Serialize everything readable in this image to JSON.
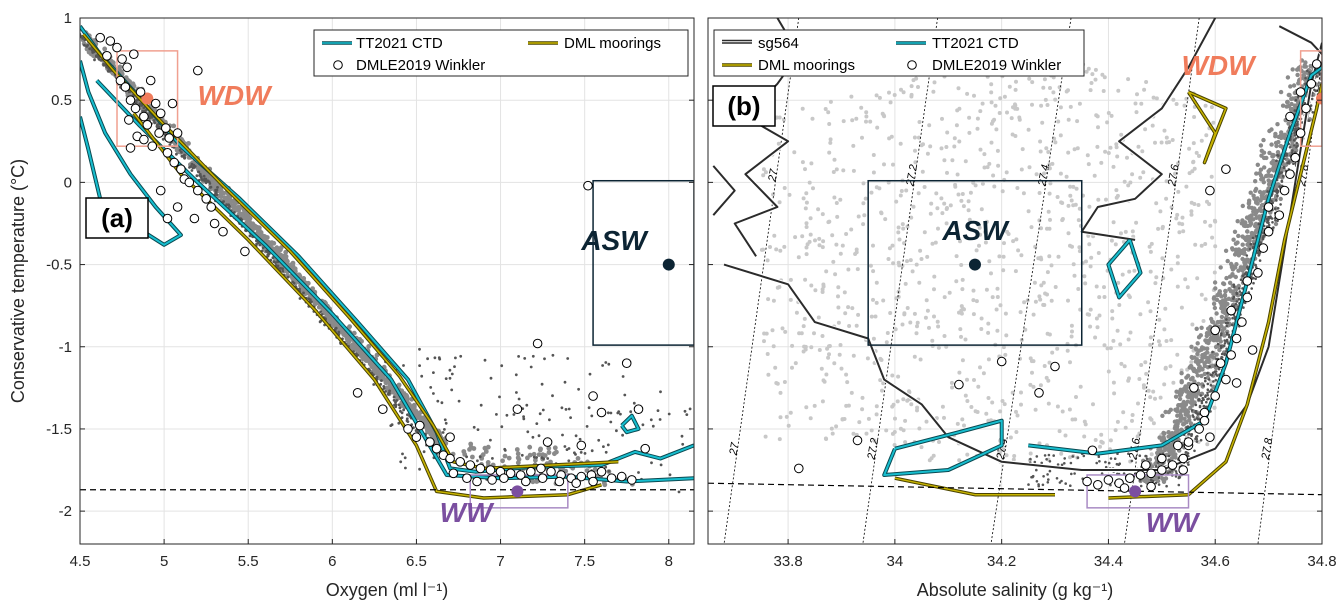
{
  "colors": {
    "sg564": "#2b2b2b",
    "tt2021": "#17becf",
    "tt2021_edge": "#0a4a52",
    "dml": "#c8b400",
    "dml_edge": "#4a4300",
    "wdw": "#f07c5c",
    "wdw_box": "#f0a090",
    "asw": "#0c2433",
    "ww": "#7b4fa0",
    "ww_box": "#a98bc4",
    "gray_dark": "#555555",
    "gray_mid": "#8a8a8a",
    "gray_light": "#c8c8c8"
  },
  "chart_data": [
    {
      "type": "scatter",
      "panel": "(a)",
      "xlabel": "Oxygen (ml l⁻¹)",
      "ylabel": "Conservative temperature (°C)",
      "xlim": [
        4.5,
        8.15
      ],
      "ylim": [
        -2.2,
        1.0
      ],
      "xticks": [
        "4.5",
        "5",
        "5.5",
        "6",
        "6.5",
        "7",
        "7.5",
        "8"
      ],
      "yticks": [
        "-2",
        "-1.5",
        "-1",
        "-0.5",
        "0",
        "0.5",
        "1"
      ],
      "grid": true,
      "legend": {
        "placement": "top-right",
        "entries": [
          "TT2021 CTD",
          "DML moorings",
          "DMLE2019 Winkler"
        ]
      },
      "freezing_line": [
        [
          4.5,
          -1.87
        ],
        [
          8.15,
          -1.87
        ]
      ],
      "water_masses": [
        {
          "name": "WDW",
          "x": 4.9,
          "y": 0.51,
          "box": {
            "x": [
              4.72,
              5.08
            ],
            "y": [
              0.22,
              0.8
            ]
          }
        },
        {
          "name": "ASW",
          "x": 8.0,
          "y": -0.5,
          "box": {
            "x": [
              7.55,
              8.15
            ],
            "y": [
              -0.99,
              0.01
            ]
          }
        },
        {
          "name": "WW",
          "x": 7.1,
          "y": -1.88,
          "box": {
            "x": [
              6.82,
              7.4
            ],
            "y": [
              -1.98,
              -1.78
            ]
          }
        }
      ],
      "winkler_points": [
        [
          4.62,
          0.88
        ],
        [
          4.68,
          0.86
        ],
        [
          4.66,
          0.77
        ],
        [
          4.72,
          0.82
        ],
        [
          4.75,
          0.75
        ],
        [
          4.78,
          0.7
        ],
        [
          4.82,
          0.78
        ],
        [
          4.74,
          0.62
        ],
        [
          4.77,
          0.58
        ],
        [
          4.8,
          0.5
        ],
        [
          4.83,
          0.45
        ],
        [
          4.86,
          0.55
        ],
        [
          4.88,
          0.4
        ],
        [
          4.9,
          0.35
        ],
        [
          4.92,
          0.62
        ],
        [
          4.95,
          0.48
        ],
        [
          4.97,
          0.3
        ],
        [
          4.79,
          0.38
        ],
        [
          4.84,
          0.28
        ],
        [
          4.88,
          0.26
        ],
        [
          4.93,
          0.22
        ],
        [
          4.98,
          0.42
        ],
        [
          5.01,
          0.33
        ],
        [
          5.03,
          0.27
        ],
        [
          5.05,
          0.48
        ],
        [
          5.08,
          0.3
        ],
        [
          5.02,
          0.18
        ],
        [
          5.06,
          0.12
        ],
        [
          5.1,
          0.08
        ],
        [
          5.12,
          0.02
        ],
        [
          5.15,
          0.0
        ],
        [
          5.2,
          -0.05
        ],
        [
          5.25,
          -0.1
        ],
        [
          5.28,
          -0.15
        ],
        [
          5.18,
          -0.22
        ],
        [
          5.08,
          -0.15
        ],
        [
          5.3,
          -0.25
        ],
        [
          5.35,
          -0.3
        ],
        [
          4.98,
          -0.05
        ],
        [
          5.02,
          -0.22
        ],
        [
          5.48,
          -0.42
        ],
        [
          5.2,
          0.68
        ],
        [
          4.8,
          0.21
        ],
        [
          6.15,
          -1.28
        ],
        [
          6.3,
          -1.38
        ],
        [
          6.45,
          -1.5
        ],
        [
          6.5,
          -1.55
        ],
        [
          6.58,
          -1.58
        ],
        [
          6.62,
          -1.62
        ],
        [
          6.66,
          -1.66
        ],
        [
          6.7,
          -1.68
        ],
        [
          6.76,
          -1.7
        ],
        [
          6.82,
          -1.72
        ],
        [
          6.88,
          -1.74
        ],
        [
          6.94,
          -1.75
        ],
        [
          7.0,
          -1.76
        ],
        [
          7.06,
          -1.77
        ],
        [
          7.12,
          -1.78
        ],
        [
          7.18,
          -1.76
        ],
        [
          7.24,
          -1.74
        ],
        [
          7.3,
          -1.76
        ],
        [
          7.36,
          -1.78
        ],
        [
          7.42,
          -1.8
        ],
        [
          7.48,
          -1.79
        ],
        [
          7.54,
          -1.78
        ],
        [
          7.6,
          -1.76
        ],
        [
          7.66,
          -1.8
        ],
        [
          7.72,
          -1.79
        ],
        [
          7.78,
          -1.81
        ],
        [
          6.72,
          -1.77
        ],
        [
          6.8,
          -1.8
        ],
        [
          6.86,
          -1.82
        ],
        [
          6.95,
          -1.81
        ],
        [
          7.02,
          -1.8
        ],
        [
          7.15,
          -1.82
        ],
        [
          7.25,
          -1.8
        ],
        [
          7.35,
          -1.82
        ],
        [
          7.45,
          -1.83
        ],
        [
          7.55,
          -1.82
        ],
        [
          7.22,
          -0.98
        ],
        [
          7.1,
          -1.38
        ],
        [
          7.28,
          -1.58
        ],
        [
          7.55,
          -1.3
        ],
        [
          7.6,
          -1.4
        ],
        [
          7.82,
          -1.38
        ],
        [
          7.48,
          -1.6
        ],
        [
          7.52,
          -0.02
        ],
        [
          7.75,
          -1.1
        ],
        [
          7.86,
          -1.62
        ],
        [
          6.7,
          -1.55
        ],
        [
          6.52,
          -1.48
        ]
      ]
    },
    {
      "type": "scatter",
      "panel": "(b)",
      "xlabel": "Absolute salinity (g kg⁻¹)",
      "ylabel": "",
      "xlim": [
        33.65,
        34.8
      ],
      "ylim": [
        -2.2,
        1.0
      ],
      "xticks": [
        "33.8",
        "34",
        "34.2",
        "34.4",
        "34.6",
        "34.8"
      ],
      "yticks": [],
      "grid": true,
      "legend": {
        "placement": "top-left",
        "entries": [
          "sg564",
          "TT2021 CTD",
          "DML moorings",
          "DMLE2019 Winkler"
        ]
      },
      "isopycnal_labels": [
        "27",
        "27.2",
        "27.4",
        "27.6",
        "27.8"
      ],
      "isopycnals": [
        {
          "label": "27",
          "x_top": 33.82,
          "x_bottom": 33.68
        },
        {
          "label": "27.2",
          "x_top": 34.08,
          "x_bottom": 33.94
        },
        {
          "label": "27.4",
          "x_top": 34.33,
          "x_bottom": 34.18
        },
        {
          "label": "27.6",
          "x_top": 34.57,
          "x_bottom": 34.43
        },
        {
          "label": "27.8",
          "x_top": 34.81,
          "x_bottom": 34.68
        }
      ],
      "freezing_line": [
        [
          33.65,
          -1.83
        ],
        [
          34.8,
          -1.9
        ]
      ],
      "water_masses": [
        {
          "name": "WDW",
          "x": 34.8,
          "y": 0.51,
          "box": {
            "x": [
              34.76,
              34.8
            ],
            "y": [
              0.22,
              0.8
            ]
          }
        },
        {
          "name": "ASW",
          "x": 34.15,
          "y": -0.5,
          "box": {
            "x": [
              33.95,
              34.35
            ],
            "y": [
              -0.99,
              0.01
            ]
          }
        },
        {
          "name": "WW",
          "x": 34.45,
          "y": -1.88,
          "box": {
            "x": [
              34.36,
              34.55
            ],
            "y": [
              -1.98,
              -1.78
            ]
          }
        }
      ],
      "winkler_points": [
        [
          33.82,
          -1.74
        ],
        [
          33.93,
          -1.57
        ],
        [
          34.12,
          -1.23
        ],
        [
          34.2,
          -1.09
        ],
        [
          34.27,
          -1.28
        ],
        [
          34.3,
          -1.12
        ],
        [
          34.36,
          -1.82
        ],
        [
          34.38,
          -1.84
        ],
        [
          34.4,
          -1.81
        ],
        [
          34.42,
          -1.83
        ],
        [
          34.44,
          -1.8
        ],
        [
          34.46,
          -1.78
        ],
        [
          34.48,
          -1.77
        ],
        [
          34.5,
          -1.75
        ],
        [
          34.52,
          -1.72
        ],
        [
          34.54,
          -1.68
        ],
        [
          34.55,
          -1.6
        ],
        [
          34.57,
          -1.5
        ],
        [
          34.58,
          -1.4
        ],
        [
          34.6,
          -1.3
        ],
        [
          34.62,
          -1.2
        ],
        [
          34.63,
          -1.05
        ],
        [
          34.64,
          -0.95
        ],
        [
          34.65,
          -0.85
        ],
        [
          34.66,
          -0.7
        ],
        [
          34.68,
          -0.55
        ],
        [
          34.69,
          -0.4
        ],
        [
          34.7,
          -0.3
        ],
        [
          34.72,
          -0.2
        ],
        [
          34.73,
          -0.05
        ],
        [
          34.74,
          0.05
        ],
        [
          34.75,
          0.15
        ],
        [
          34.76,
          0.3
        ],
        [
          34.77,
          0.45
        ],
        [
          34.78,
          0.6
        ],
        [
          34.79,
          0.72
        ],
        [
          34.76,
          0.55
        ],
        [
          34.74,
          0.4
        ],
        [
          34.7,
          -0.15
        ],
        [
          34.66,
          -0.6
        ],
        [
          34.61,
          -1.1
        ],
        [
          34.58,
          -1.45
        ],
        [
          34.5,
          -1.68
        ],
        [
          34.47,
          -1.72
        ],
        [
          34.53,
          -1.6
        ],
        [
          34.59,
          -1.55
        ],
        [
          34.64,
          -1.22
        ],
        [
          34.67,
          -1.02
        ],
        [
          34.56,
          -1.25
        ],
        [
          34.6,
          -0.9
        ],
        [
          34.63,
          -0.78
        ],
        [
          34.55,
          -1.58
        ],
        [
          34.43,
          -1.86
        ],
        [
          34.48,
          -1.85
        ],
        [
          34.37,
          -1.63
        ],
        [
          34.59,
          -0.05
        ],
        [
          34.62,
          0.08
        ],
        [
          34.54,
          -1.75
        ]
      ]
    }
  ]
}
